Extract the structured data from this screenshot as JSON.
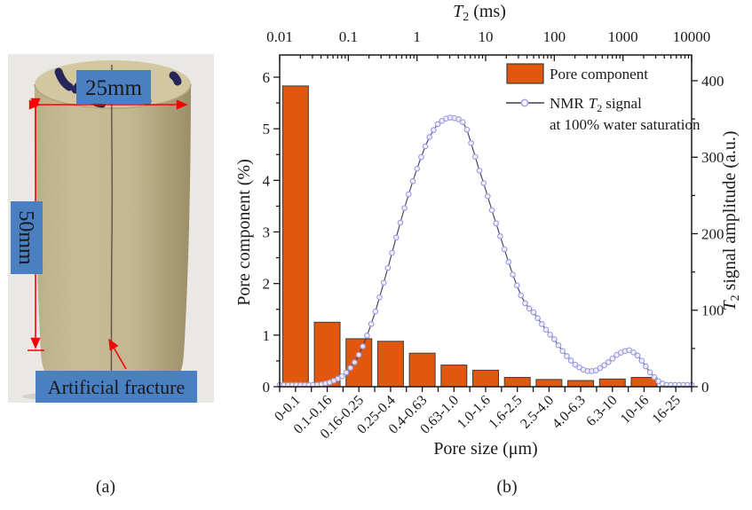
{
  "captions": {
    "a": "(a)",
    "b": "(b)"
  },
  "photo": {
    "labels": {
      "diameter": "25mm",
      "height": "50mm",
      "fracture": "Artificial fracture"
    },
    "colors": {
      "label_box": "#4A7FC1",
      "arrow": "#FB0006",
      "background": "#EAE8E4",
      "rock": "#C8BB94",
      "rock_shadow": "#A89A71",
      "rock_top": "#D6CBA4",
      "ink_mark": "#26265A"
    }
  },
  "chart_data": {
    "type": "bar+line",
    "categories": [
      "0-0.1",
      "0.1-0.16",
      "0.16-0.25",
      "0.25-0.4",
      "0.4-0.63",
      "0.63-1.0",
      "1.0-1.6",
      "1.6-2.5",
      "2.5-4.0",
      "4.0-6.3",
      "6.3-10",
      "10-16",
      "16-25"
    ],
    "series": [
      {
        "name": "Pore component",
        "type": "bar",
        "axis": "left",
        "values": [
          5.83,
          1.25,
          0.93,
          0.88,
          0.65,
          0.42,
          0.32,
          0.18,
          0.14,
          0.12,
          0.15,
          0.18,
          0.02
        ]
      },
      {
        "name": "NMR T2 signal at 100% water saturation",
        "type": "line",
        "axis": "right",
        "x_unit": "log10(T2 ms)",
        "points": [
          [
            -2.0,
            1
          ],
          [
            -1.85,
            1
          ],
          [
            -1.7,
            1
          ],
          [
            -1.55,
            1.5
          ],
          [
            -1.4,
            3
          ],
          [
            -1.25,
            6
          ],
          [
            -1.1,
            13
          ],
          [
            -1.0,
            21
          ],
          [
            -0.9,
            33
          ],
          [
            -0.8,
            50
          ],
          [
            -0.7,
            73
          ],
          [
            -0.6,
            100
          ],
          [
            -0.5,
            131
          ],
          [
            -0.4,
            163
          ],
          [
            -0.3,
            196
          ],
          [
            -0.2,
            228
          ],
          [
            -0.1,
            258
          ],
          [
            0.0,
            285
          ],
          [
            0.1,
            310
          ],
          [
            0.2,
            330
          ],
          [
            0.3,
            343
          ],
          [
            0.4,
            350
          ],
          [
            0.5,
            352
          ],
          [
            0.6,
            350
          ],
          [
            0.7,
            344
          ],
          [
            0.8,
            315
          ],
          [
            0.9,
            285
          ],
          [
            1.0,
            258
          ],
          [
            1.1,
            228
          ],
          [
            1.2,
            200
          ],
          [
            1.3,
            172
          ],
          [
            1.4,
            145
          ],
          [
            1.5,
            122
          ],
          [
            1.6,
            105
          ],
          [
            1.7,
            97
          ],
          [
            1.8,
            84
          ],
          [
            1.9,
            72
          ],
          [
            2.0,
            62
          ],
          [
            2.1,
            49
          ],
          [
            2.2,
            38
          ],
          [
            2.3,
            29
          ],
          [
            2.4,
            23
          ],
          [
            2.5,
            20
          ],
          [
            2.6,
            21
          ],
          [
            2.7,
            26
          ],
          [
            2.8,
            33
          ],
          [
            2.9,
            41
          ],
          [
            3.0,
            46
          ],
          [
            3.1,
            48
          ],
          [
            3.2,
            42
          ],
          [
            3.3,
            31
          ],
          [
            3.4,
            18
          ],
          [
            3.5,
            8
          ],
          [
            3.6,
            3
          ],
          [
            3.7,
            1
          ],
          [
            3.8,
            0.5
          ],
          [
            3.9,
            0.5
          ],
          [
            4.0,
            0.5
          ]
        ]
      }
    ],
    "axes": {
      "top": {
        "scale": "log",
        "range_ms": [
          0.01,
          10000
        ],
        "tick_labels": [
          "0.01",
          "0.1",
          "1",
          "10",
          "100",
          "1000",
          "10000"
        ],
        "title": {
          "t": "T",
          "sub": "2",
          "rest": "(ms)"
        }
      },
      "left": {
        "label": "Pore component (%)",
        "ticks": [
          0,
          1,
          2,
          3,
          4,
          5,
          6
        ],
        "max": 6.43,
        "minor_step": 0.5
      },
      "right": {
        "ticks": [
          0,
          100,
          200,
          300,
          400
        ],
        "max": 433.6,
        "minor_step": 50,
        "title": {
          "t": "T",
          "sub": "2",
          "rest": "signal amplitude (a.u.)"
        }
      },
      "bottom": {
        "label": "Pore size (μm)",
        "tick_label_rotation_deg": 45
      }
    },
    "legend": {
      "bar_label": "Pore component",
      "line_label": {
        "prefix": "NMR",
        "t": "T",
        "sub": "2",
        "suffix": "signal",
        "line2": "at 100% water saturation"
      }
    },
    "colors": {
      "bar_fill": "#E2570E",
      "bar_edge": "#3d3d3d",
      "curve_line": "#3C3C55",
      "marker_stroke": "#9E9EE8",
      "marker_fill": "#FFFFFF",
      "axis": "#1a1a1a"
    }
  }
}
